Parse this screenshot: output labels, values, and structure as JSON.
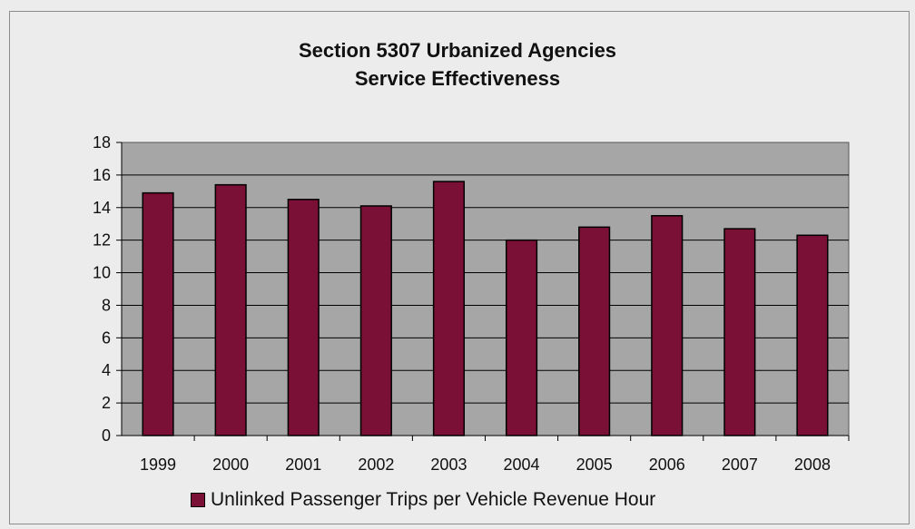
{
  "chart_data": {
    "type": "bar",
    "title": [
      "Section 5307  Urbanized Agencies",
      "Service Effectiveness"
    ],
    "categories": [
      "1999",
      "2000",
      "2001",
      "2002",
      "2003",
      "2004",
      "2005",
      "2006",
      "2007",
      "2008"
    ],
    "series": [
      {
        "name": "Unlinked Passenger Trips per Vehicle Revenue Hour",
        "values": [
          14.9,
          15.4,
          14.5,
          14.1,
          15.6,
          12.0,
          12.8,
          13.5,
          12.7,
          12.3
        ]
      }
    ],
    "yticks": [
      "0",
      "2",
      "4",
      "6",
      "8",
      "10",
      "12",
      "14",
      "16",
      "18"
    ],
    "ylim": [
      0,
      18
    ],
    "grid": true,
    "legend": "bottom",
    "colors": {
      "bar": "#7a1036",
      "plot_background": "#a6a6a6",
      "background": "#ececec",
      "gridline": "#000000"
    }
  }
}
